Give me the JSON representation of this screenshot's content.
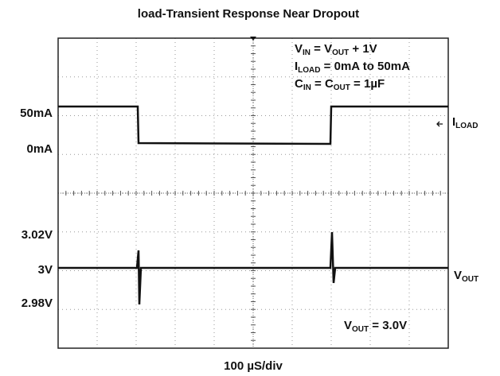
{
  "title": "load-Transient Response  Near Dropout",
  "levels": [
    "50mA",
    "0mA",
    "3.02V",
    "3V",
    "2.98V"
  ],
  "conditions": [
    [
      "V",
      "IN",
      " = V",
      "OUT",
      " + 1V"
    ],
    [
      "I",
      "LOAD",
      " = 0mA to 50mA"
    ],
    [
      "C",
      "IN",
      " = C",
      "OUT",
      " = 1µF"
    ]
  ],
  "trace_labels": [
    [
      "I",
      "LOAD"
    ],
    [
      "V",
      "OUT"
    ]
  ],
  "output_note": [
    "V",
    "OUT",
    " = 3.0V"
  ],
  "timebase": "100 µS/div"
}
